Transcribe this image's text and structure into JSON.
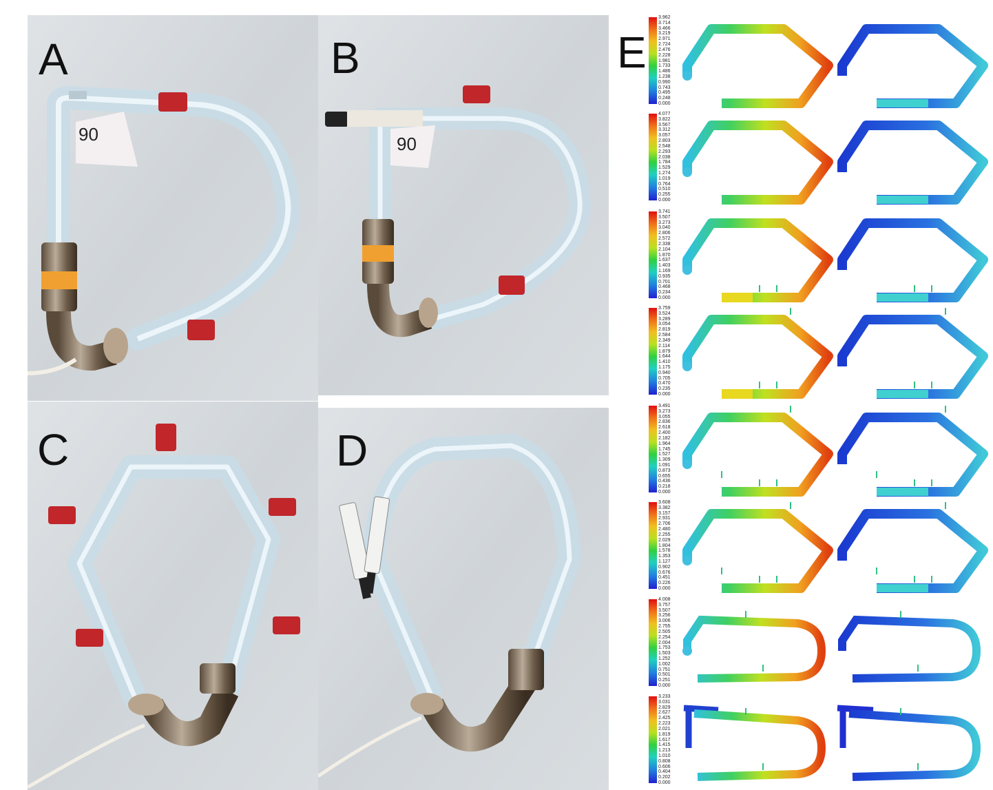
{
  "panels": {
    "a": {
      "letter": "A",
      "tag": "90"
    },
    "b": {
      "letter": "B",
      "tag": "90"
    },
    "c": {
      "letter": "C"
    },
    "d": {
      "letter": "D"
    },
    "e": {
      "letter": "E"
    }
  },
  "simulations": [
    {
      "ticks": [
        "3.962",
        "3.714",
        "3.466",
        "3.219",
        "2.971",
        "2.724",
        "2.476",
        "2.228",
        "1.981",
        "1.733",
        "1.486",
        "1.238",
        "0.990",
        "0.743",
        "0.495",
        "0.248",
        "0.000"
      ]
    },
    {
      "ticks": [
        "4.077",
        "3.822",
        "3.567",
        "3.312",
        "3.057",
        "2.803",
        "2.548",
        "2.293",
        "2.038",
        "1.784",
        "1.529",
        "1.274",
        "1.019",
        "0.764",
        "0.510",
        "0.255",
        "0.000"
      ]
    },
    {
      "ticks": [
        "3.741",
        "3.507",
        "3.273",
        "3.040",
        "2.806",
        "2.572",
        "2.338",
        "2.104",
        "1.870",
        "1.637",
        "1.403",
        "1.169",
        "0.935",
        "0.701",
        "0.468",
        "0.234",
        "0.000"
      ]
    },
    {
      "ticks": [
        "3.759",
        "3.524",
        "3.289",
        "3.054",
        "2.819",
        "2.584",
        "2.349",
        "2.114",
        "1.879",
        "1.644",
        "1.410",
        "1.175",
        "0.940",
        "0.705",
        "0.470",
        "0.235",
        "0.000"
      ]
    },
    {
      "ticks": [
        "3.491",
        "3.273",
        "3.055",
        "2.836",
        "2.618",
        "2.400",
        "2.182",
        "1.964",
        "1.745",
        "1.527",
        "1.309",
        "1.091",
        "0.873",
        "0.655",
        "0.436",
        "0.218",
        "0.000"
      ]
    },
    {
      "ticks": [
        "3.608",
        "3.382",
        "3.157",
        "2.931",
        "2.706",
        "2.480",
        "2.255",
        "2.029",
        "1.804",
        "1.578",
        "1.353",
        "1.127",
        "0.902",
        "0.676",
        "0.451",
        "0.226",
        "0.000"
      ]
    },
    {
      "ticks": [
        "4.008",
        "3.757",
        "3.507",
        "3.256",
        "3.006",
        "2.755",
        "2.505",
        "2.254",
        "2.004",
        "1.753",
        "1.503",
        "1.252",
        "1.002",
        "0.751",
        "0.501",
        "0.251",
        "0.000"
      ]
    },
    {
      "ticks": [
        "3.233",
        "3.031",
        "2.829",
        "2.627",
        "2.425",
        "2.223",
        "2.021",
        "1.819",
        "1.617",
        "1.415",
        "1.213",
        "1.010",
        "0.808",
        "0.606",
        "0.404",
        "0.202",
        "0.000"
      ]
    }
  ]
}
